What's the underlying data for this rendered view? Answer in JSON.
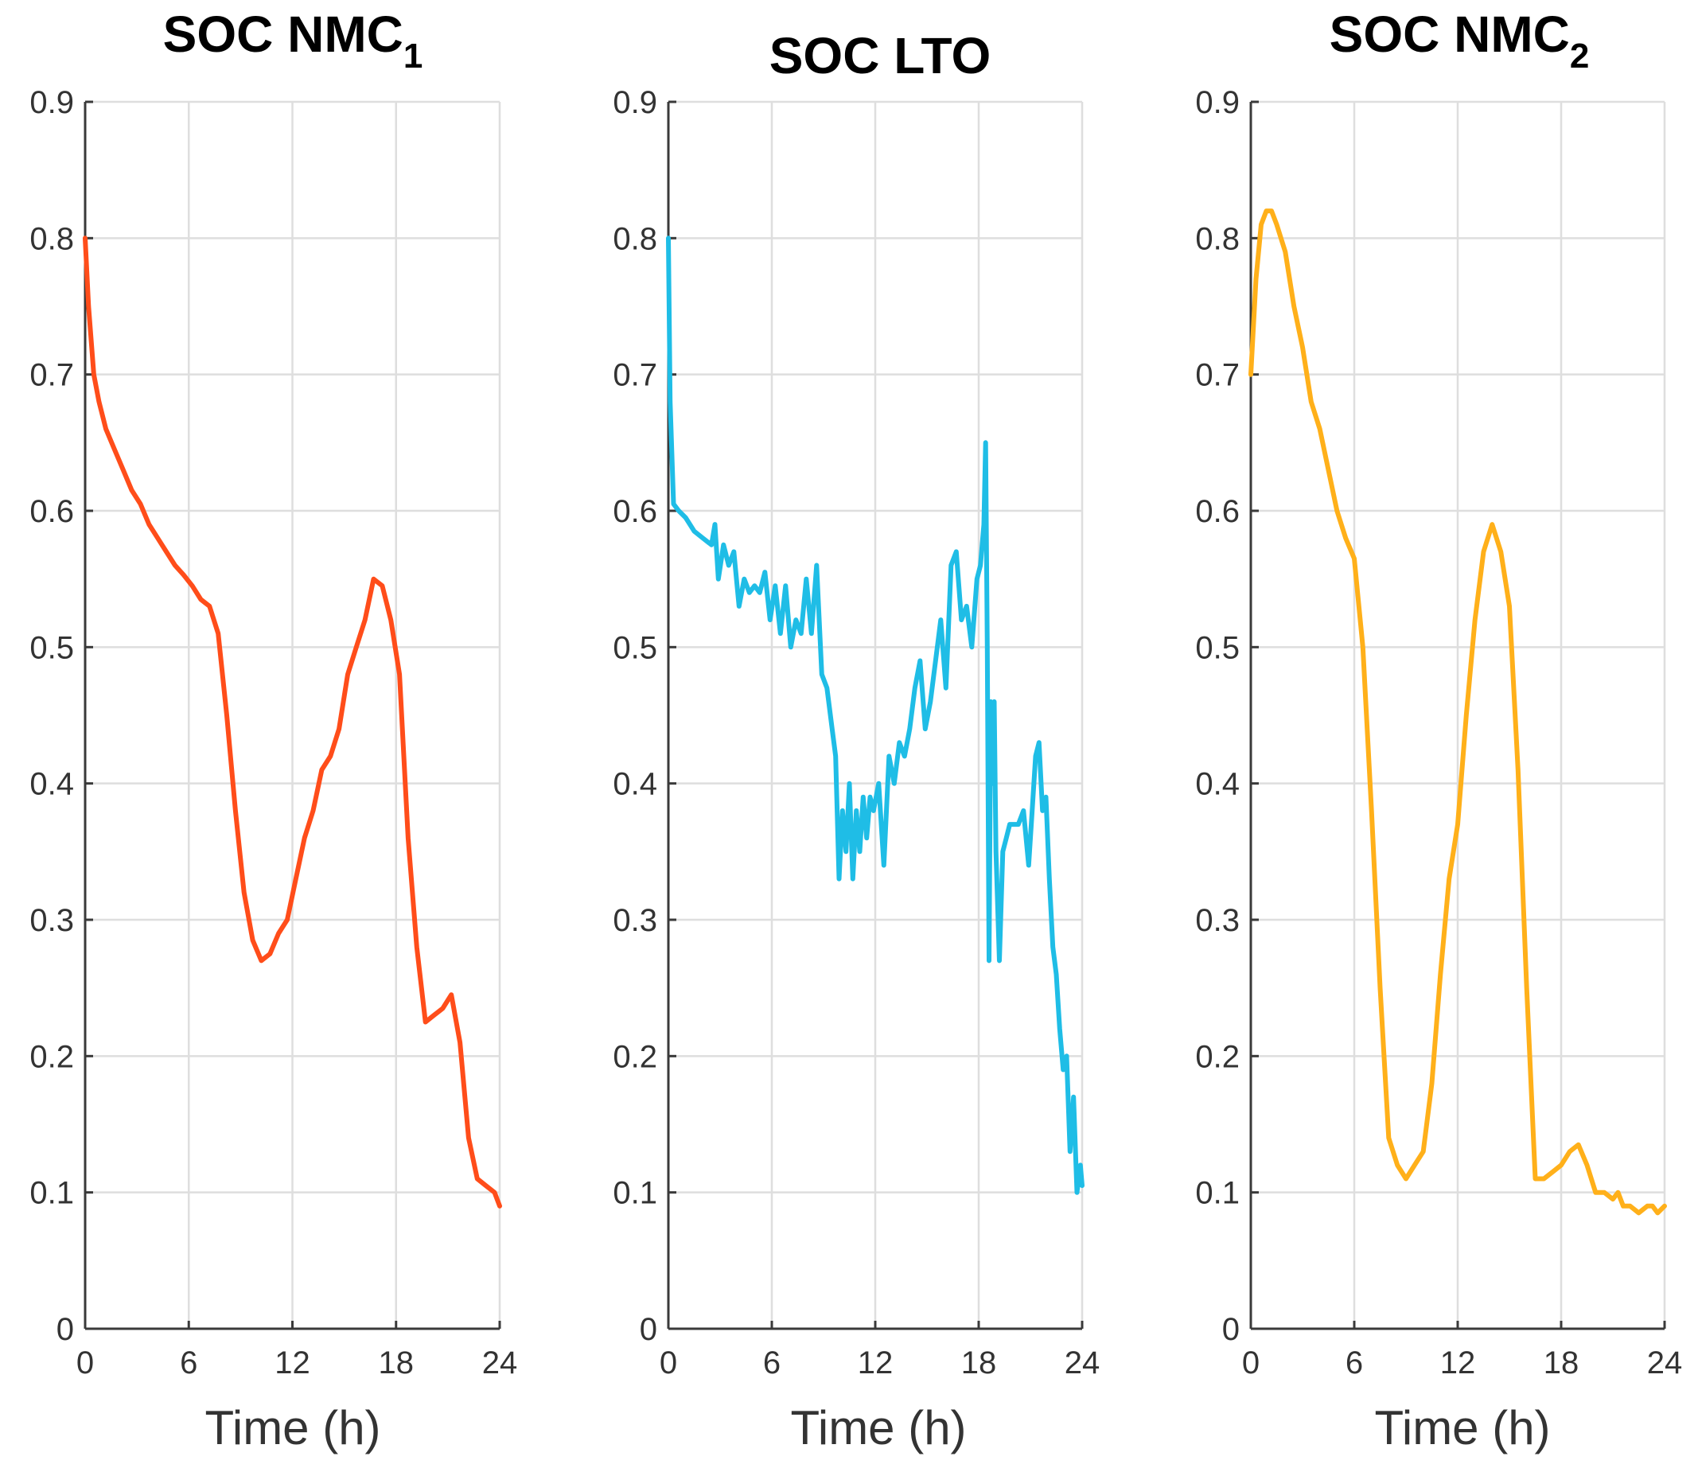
{
  "figure": {
    "charts": [
      {
        "id": "nmc1",
        "type": "line",
        "title": "SOC NMC",
        "title_subscript": "1",
        "xlabel": "Time (h)",
        "ylabel": "",
        "xlim": [
          0,
          24
        ],
        "ylim": [
          0,
          0.9
        ],
        "xticks": [
          "0",
          "6",
          "12",
          "18",
          "24"
        ],
        "yticks": [
          "0",
          "0.1",
          "0.2",
          "0.3",
          "0.4",
          "0.5",
          "0.6",
          "0.7",
          "0.8",
          "0.9"
        ],
        "grid": true,
        "color": "#ff4d1a",
        "x": [
          0,
          0.2,
          0.5,
          0.8,
          1.2,
          1.7,
          2.2,
          2.7,
          3.2,
          3.7,
          4.2,
          4.7,
          5.2,
          5.7,
          6.2,
          6.7,
          7.2,
          7.7,
          8.2,
          8.7,
          9.2,
          9.7,
          10.2,
          10.7,
          11.2,
          11.7,
          12.2,
          12.7,
          13.2,
          13.7,
          14.2,
          14.7,
          15.2,
          15.7,
          16.2,
          16.7,
          17.2,
          17.7,
          18.2,
          18.7,
          19.2,
          19.7,
          20.2,
          20.7,
          21.2,
          21.7,
          22.2,
          22.7,
          23.2,
          23.7,
          24
        ],
        "y": [
          0.8,
          0.75,
          0.7,
          0.68,
          0.66,
          0.645,
          0.63,
          0.615,
          0.605,
          0.59,
          0.58,
          0.57,
          0.56,
          0.553,
          0.545,
          0.535,
          0.53,
          0.51,
          0.45,
          0.38,
          0.32,
          0.285,
          0.27,
          0.275,
          0.29,
          0.3,
          0.33,
          0.36,
          0.38,
          0.41,
          0.42,
          0.44,
          0.48,
          0.5,
          0.52,
          0.55,
          0.545,
          0.52,
          0.48,
          0.36,
          0.28,
          0.225,
          0.23,
          0.235,
          0.245,
          0.21,
          0.14,
          0.11,
          0.105,
          0.1,
          0.09
        ]
      },
      {
        "id": "lto",
        "type": "line",
        "title": "SOC LTO",
        "title_subscript": "",
        "xlabel": "Time (h)",
        "ylabel": "",
        "xlim": [
          0,
          24
        ],
        "ylim": [
          0,
          0.9
        ],
        "xticks": [
          "0",
          "6",
          "12",
          "18",
          "24"
        ],
        "yticks": [
          "0",
          "0.1",
          "0.2",
          "0.3",
          "0.4",
          "0.5",
          "0.6",
          "0.7",
          "0.8",
          "0.9"
        ],
        "grid": true,
        "color": "#1fbde6",
        "x": [
          0,
          0.1,
          0.3,
          0.6,
          1.0,
          1.5,
          2.0,
          2.5,
          2.7,
          2.9,
          3.2,
          3.5,
          3.8,
          4.1,
          4.4,
          4.7,
          5.0,
          5.3,
          5.6,
          5.9,
          6.2,
          6.5,
          6.8,
          7.1,
          7.4,
          7.7,
          8.0,
          8.3,
          8.6,
          8.9,
          9.2,
          9.5,
          9.7,
          9.9,
          10.1,
          10.3,
          10.5,
          10.7,
          10.9,
          11.1,
          11.3,
          11.5,
          11.7,
          11.9,
          12.2,
          12.5,
          12.8,
          13.1,
          13.4,
          13.7,
          14.0,
          14.3,
          14.6,
          14.9,
          15.2,
          15.5,
          15.8,
          16.1,
          16.4,
          16.7,
          17.0,
          17.3,
          17.6,
          17.9,
          18.1,
          18.3,
          18.4,
          18.5,
          18.6,
          18.7,
          18.8,
          18.9,
          19.0,
          19.2,
          19.4,
          19.6,
          19.8,
          20.0,
          20.3,
          20.6,
          20.9,
          21.1,
          21.3,
          21.5,
          21.7,
          21.9,
          22.1,
          22.3,
          22.5,
          22.7,
          22.9,
          23.1,
          23.3,
          23.5,
          23.7,
          23.9,
          24.0
        ],
        "y": [
          0.8,
          0.68,
          0.605,
          0.6,
          0.595,
          0.585,
          0.58,
          0.575,
          0.59,
          0.55,
          0.575,
          0.56,
          0.57,
          0.53,
          0.55,
          0.54,
          0.545,
          0.54,
          0.555,
          0.52,
          0.545,
          0.51,
          0.545,
          0.5,
          0.52,
          0.51,
          0.55,
          0.51,
          0.56,
          0.48,
          0.47,
          0.44,
          0.42,
          0.33,
          0.38,
          0.35,
          0.4,
          0.33,
          0.38,
          0.35,
          0.39,
          0.36,
          0.39,
          0.38,
          0.4,
          0.34,
          0.42,
          0.4,
          0.43,
          0.42,
          0.44,
          0.47,
          0.49,
          0.44,
          0.46,
          0.49,
          0.52,
          0.47,
          0.56,
          0.57,
          0.52,
          0.53,
          0.5,
          0.55,
          0.56,
          0.59,
          0.65,
          0.5,
          0.27,
          0.46,
          0.4,
          0.46,
          0.35,
          0.27,
          0.35,
          0.36,
          0.37,
          0.37,
          0.37,
          0.38,
          0.34,
          0.38,
          0.42,
          0.43,
          0.38,
          0.39,
          0.33,
          0.28,
          0.26,
          0.22,
          0.19,
          0.2,
          0.13,
          0.17,
          0.1,
          0.12,
          0.105
        ]
      },
      {
        "id": "nmc2",
        "type": "line",
        "title": "SOC NMC",
        "title_subscript": "2",
        "xlabel": "Time (h)",
        "ylabel": "",
        "xlim": [
          0,
          24
        ],
        "ylim": [
          0,
          0.9
        ],
        "xticks": [
          "0",
          "6",
          "12",
          "18",
          "24"
        ],
        "yticks": [
          "0",
          "0.1",
          "0.2",
          "0.3",
          "0.4",
          "0.5",
          "0.6",
          "0.7",
          "0.8",
          "0.9"
        ],
        "grid": true,
        "color": "#ffb01a",
        "x": [
          0,
          0.3,
          0.6,
          0.9,
          1.2,
          1.5,
          2.0,
          2.5,
          3.0,
          3.5,
          4.0,
          4.5,
          5.0,
          5.5,
          6.0,
          6.5,
          7.0,
          7.5,
          8.0,
          8.5,
          9.0,
          9.5,
          10.0,
          10.5,
          11.0,
          11.5,
          12.0,
          12.5,
          13.0,
          13.5,
          14.0,
          14.5,
          15.0,
          15.5,
          16.0,
          16.5,
          17.0,
          17.5,
          18.0,
          18.5,
          19.0,
          19.5,
          20.0,
          20.5,
          21.0,
          21.3,
          21.6,
          22.0,
          22.5,
          23.0,
          23.3,
          23.6,
          24.0
        ],
        "y": [
          0.7,
          0.77,
          0.81,
          0.82,
          0.82,
          0.81,
          0.79,
          0.75,
          0.72,
          0.68,
          0.66,
          0.63,
          0.6,
          0.58,
          0.565,
          0.5,
          0.38,
          0.25,
          0.14,
          0.12,
          0.11,
          0.12,
          0.13,
          0.18,
          0.26,
          0.33,
          0.37,
          0.45,
          0.52,
          0.57,
          0.59,
          0.57,
          0.53,
          0.41,
          0.25,
          0.11,
          0.11,
          0.115,
          0.12,
          0.13,
          0.135,
          0.12,
          0.1,
          0.1,
          0.095,
          0.1,
          0.09,
          0.09,
          0.085,
          0.09,
          0.09,
          0.085,
          0.09
        ]
      }
    ]
  }
}
